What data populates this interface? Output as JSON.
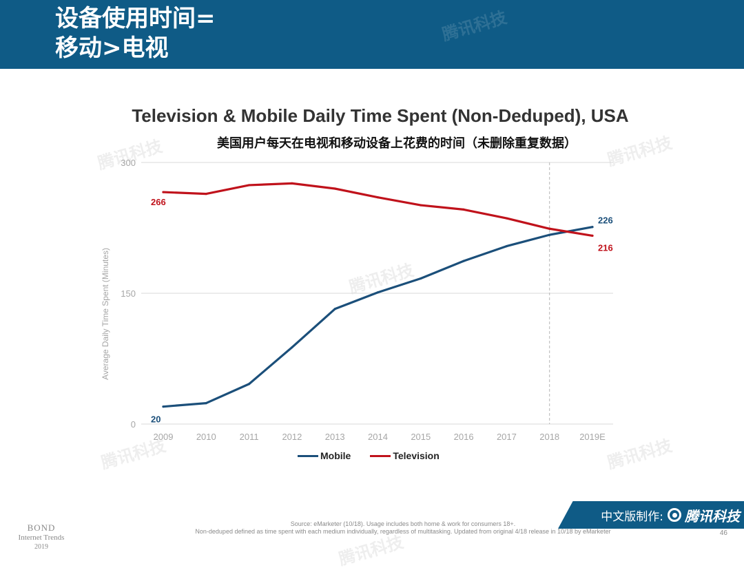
{
  "banner": {
    "title_line1": "设备使用时间=",
    "title_line2": "移动>电视"
  },
  "chart_data": {
    "type": "line",
    "title": "Television & Mobile Daily Time Spent (Non-Deduped), USA",
    "subtitle": "美国用户每天在电视和移动设备上花费的时间（未删除重复数据）",
    "xlabel": "",
    "ylabel": "Average Daily Time Spent (Minutes)",
    "categories": [
      "2009",
      "2010",
      "2011",
      "2012",
      "2013",
      "2014",
      "2015",
      "2016",
      "2017",
      "2018",
      "2019E"
    ],
    "ylim": [
      0,
      300
    ],
    "yticks": [
      "0",
      "150",
      "300"
    ],
    "grid": true,
    "legend_position": "bottom",
    "series": [
      {
        "name": "Mobile",
        "color": "#1b4f7a",
        "values": [
          20,
          24,
          46,
          88,
          132,
          151,
          167,
          187,
          204,
          217,
          226
        ],
        "start_label": "20",
        "end_label": "226"
      },
      {
        "name": "Television",
        "color": "#c0121b",
        "values": [
          266,
          264,
          274,
          276,
          270,
          260,
          251,
          246,
          236,
          224,
          216
        ],
        "start_label": "266",
        "end_label": "216"
      }
    ],
    "reference_line_category": "2018"
  },
  "footer": {
    "bond_line1": "BOND",
    "bond_line2": "Internet Trends",
    "bond_line3": "2019",
    "source_line1": "Source: eMarketer (10/18). Usage includes both home & work for consumers 18+.",
    "source_line2": "Non-deduped defined as time spent with each medium individually, regardless of multitasking. Updated from original 4/18 release in 10/18 by eMarketer",
    "page_number": "46",
    "credit_label": "中文版制作:",
    "credit_brand": "腾讯科技"
  },
  "watermark_text": "腾讯科技"
}
